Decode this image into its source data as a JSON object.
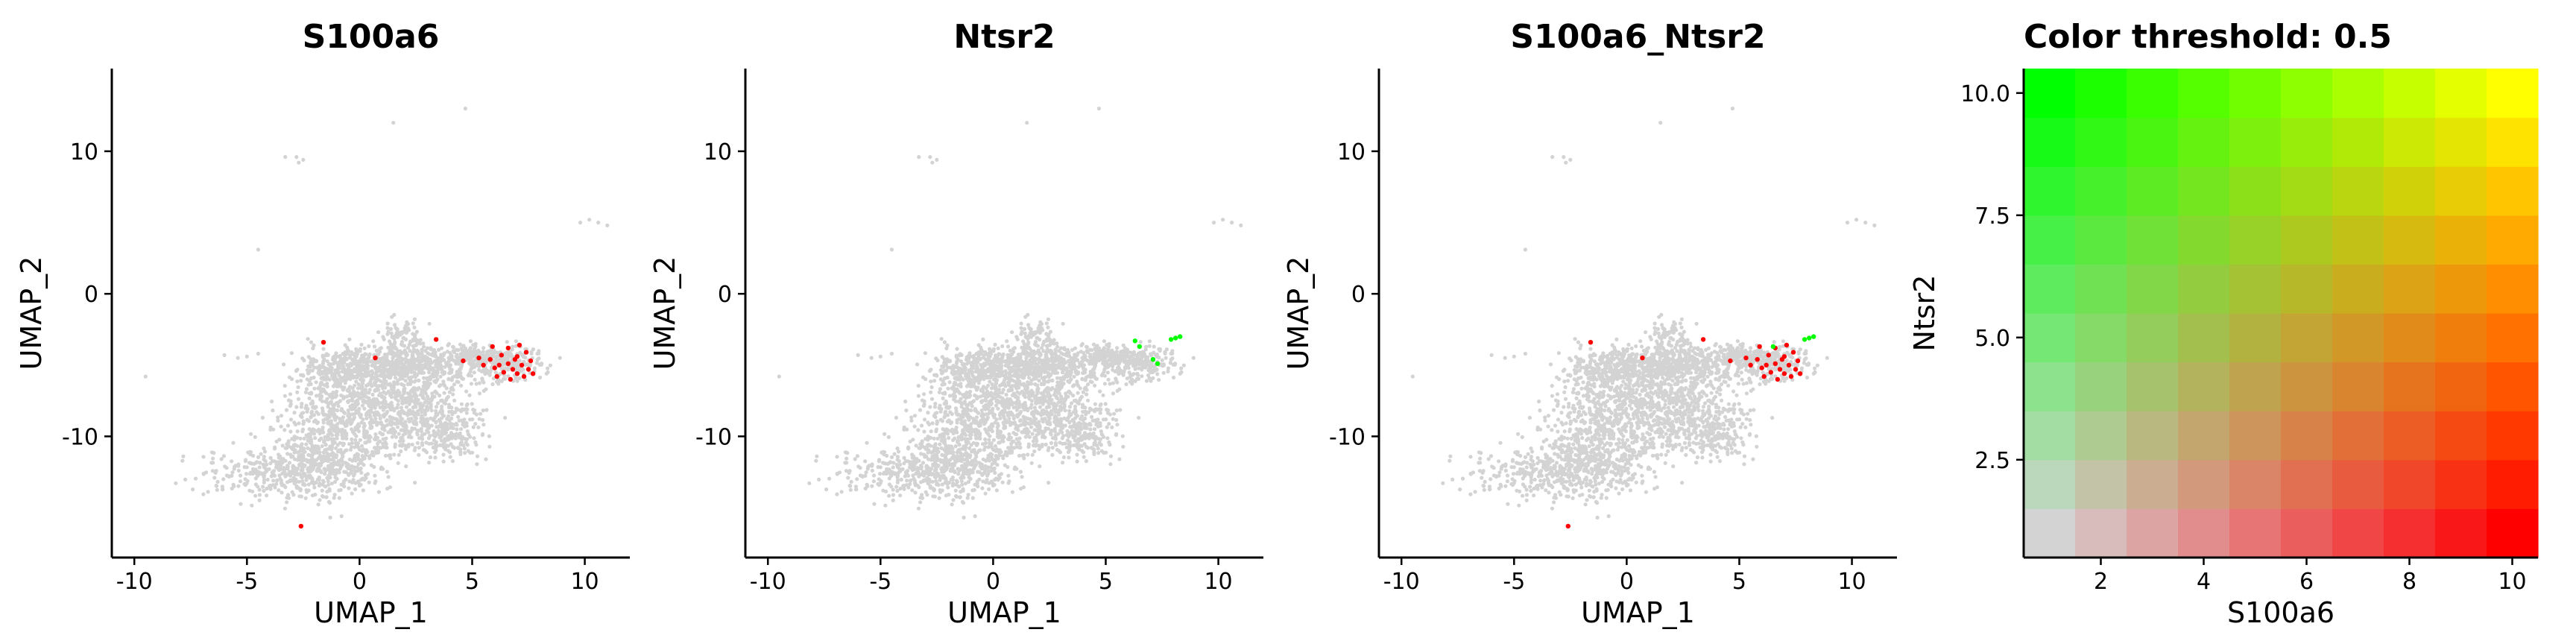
{
  "colors": {
    "background_cell": "#d3d3d3",
    "feature1_high": "#ff0000",
    "feature2_high": "#00ff00",
    "coexpress_high": "#ffff00",
    "axis": "#000000"
  },
  "chart_data": [
    {
      "type": "scatter",
      "title": "S100a6",
      "xlabel": "UMAP_1",
      "ylabel": "UMAP_2",
      "xlim": [
        -11,
        12
      ],
      "ylim": [
        -18.5,
        15.8
      ],
      "xticks": [
        -10,
        -5,
        0,
        5,
        10
      ],
      "xtick_labels": [
        "-10",
        "-5",
        "0",
        "5",
        "10"
      ],
      "yticks": [
        -10,
        0,
        10
      ],
      "ytick_labels": [
        "-10",
        "0",
        "10"
      ],
      "grid": false,
      "series": [
        {
          "color": "#ff0000",
          "points": [
            [
              -2.6,
              -16.3
            ],
            [
              -1.6,
              -3.4
            ],
            [
              0.7,
              -4.5
            ],
            [
              3.4,
              -3.2
            ],
            [
              4.6,
              -4.7
            ],
            [
              5.3,
              -4.5
            ],
            [
              5.5,
              -5.0
            ],
            [
              5.8,
              -4.6
            ],
            [
              6.0,
              -5.2
            ],
            [
              6.1,
              -5.8
            ],
            [
              6.3,
              -4.3
            ],
            [
              6.4,
              -5.5
            ],
            [
              6.6,
              -4.9
            ],
            [
              6.6,
              -3.8
            ],
            [
              6.7,
              -6.0
            ],
            [
              6.8,
              -5.3
            ],
            [
              7.0,
              -4.4
            ],
            [
              7.0,
              -5.6
            ],
            [
              7.1,
              -3.6
            ],
            [
              7.2,
              -5.0
            ],
            [
              7.3,
              -5.8
            ],
            [
              7.4,
              -4.1
            ],
            [
              7.5,
              -5.3
            ],
            [
              7.6,
              -4.7
            ],
            [
              7.7,
              -5.6
            ],
            [
              5.9,
              -3.7
            ],
            [
              6.2,
              -5.0
            ],
            [
              6.9,
              -4.6
            ]
          ]
        }
      ]
    },
    {
      "type": "scatter",
      "title": "Ntsr2",
      "xlabel": "UMAP_1",
      "ylabel": "UMAP_2",
      "xlim": [
        -11,
        12
      ],
      "ylim": [
        -18.5,
        15.8
      ],
      "xticks": [
        -10,
        -5,
        0,
        5,
        10
      ],
      "xtick_labels": [
        "-10",
        "-5",
        "0",
        "5",
        "10"
      ],
      "yticks": [
        -10,
        0,
        10
      ],
      "ytick_labels": [
        "-10",
        "0",
        "10"
      ],
      "grid": false,
      "series": [
        {
          "color": "#00ff00",
          "points": [
            [
              6.3,
              -3.3
            ],
            [
              6.5,
              -3.7
            ],
            [
              7.1,
              -4.6
            ],
            [
              7.3,
              -4.9
            ],
            [
              7.9,
              -3.2
            ],
            [
              8.1,
              -3.1
            ],
            [
              8.3,
              -3.0
            ]
          ]
        }
      ]
    },
    {
      "type": "scatter",
      "title": "S100a6_Ntsr2",
      "xlabel": "UMAP_1",
      "ylabel": "UMAP_2",
      "xlim": [
        -11,
        12
      ],
      "ylim": [
        -18.5,
        15.8
      ],
      "xticks": [
        -10,
        -5,
        0,
        5,
        10
      ],
      "xtick_labels": [
        "-10",
        "-5",
        "0",
        "5",
        "10"
      ],
      "yticks": [
        -10,
        0,
        10
      ],
      "ytick_labels": [
        "-10",
        "0",
        "10"
      ],
      "grid": false,
      "series": [
        {
          "color": "#ff0000",
          "points": [
            [
              -2.6,
              -16.3
            ],
            [
              -1.6,
              -3.4
            ],
            [
              0.7,
              -4.5
            ],
            [
              3.4,
              -3.2
            ],
            [
              4.6,
              -4.7
            ],
            [
              5.3,
              -4.5
            ],
            [
              5.5,
              -5.0
            ],
            [
              5.8,
              -4.6
            ],
            [
              6.0,
              -5.2
            ],
            [
              6.1,
              -5.8
            ],
            [
              6.3,
              -4.3
            ],
            [
              6.4,
              -5.5
            ],
            [
              6.6,
              -4.9
            ],
            [
              6.6,
              -3.8
            ],
            [
              6.7,
              -6.0
            ],
            [
              6.8,
              -5.3
            ],
            [
              7.0,
              -4.4
            ],
            [
              7.0,
              -5.6
            ],
            [
              7.1,
              -3.6
            ],
            [
              7.2,
              -5.0
            ],
            [
              7.3,
              -5.8
            ],
            [
              7.4,
              -4.1
            ],
            [
              7.5,
              -5.3
            ],
            [
              7.6,
              -4.7
            ],
            [
              7.7,
              -5.6
            ],
            [
              5.9,
              -3.7
            ],
            [
              6.2,
              -5.0
            ],
            [
              6.9,
              -4.6
            ]
          ]
        },
        {
          "color": "#00ff00",
          "points": [
            [
              7.9,
              -3.2
            ],
            [
              8.1,
              -3.1
            ],
            [
              8.3,
              -3.0
            ],
            [
              6.5,
              -3.7
            ]
          ]
        }
      ]
    },
    {
      "type": "heatmap",
      "title": "Color threshold: 0.5",
      "xlabel": "S100a6",
      "ylabel": "Ntsr2",
      "grid_size": 10,
      "xlim": [
        0.5,
        10.5
      ],
      "ylim": [
        0.5,
        10.5
      ],
      "xticks": [
        2,
        4,
        6,
        8,
        10
      ],
      "xtick_labels": [
        "2",
        "4",
        "6",
        "8",
        "10"
      ],
      "yticks": [
        2.5,
        5.0,
        7.5,
        10.0
      ],
      "ytick_labels": [
        "2.5",
        "5.0",
        "7.5",
        "10.0"
      ],
      "low_color": "#d3d3d3",
      "x_high_color": "#ff0000",
      "y_high_color": "#00ff00",
      "both_high_color": "#ffff00"
    }
  ]
}
